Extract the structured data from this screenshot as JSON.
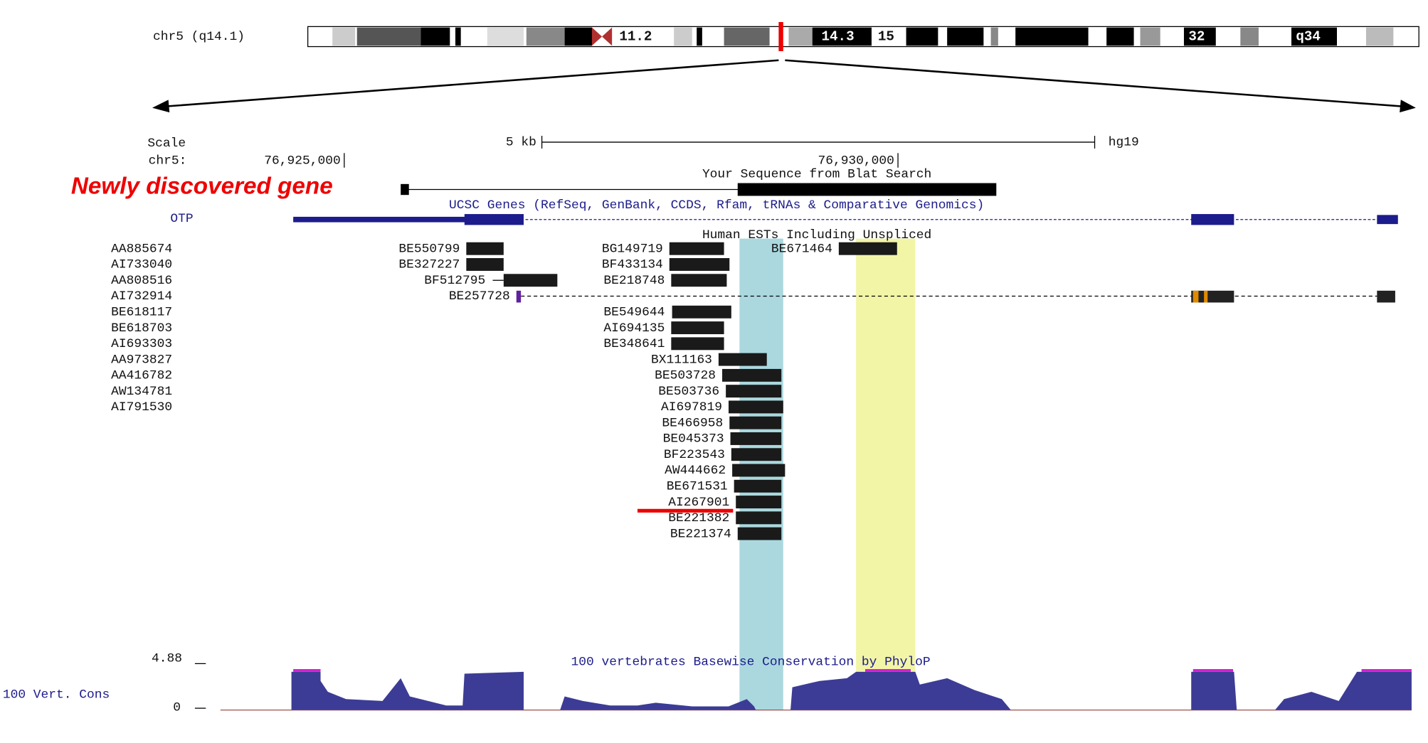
{
  "ideogram": {
    "chrom": "chr5 (q14.1)",
    "bands": [
      "11.2",
      "14.3",
      "15",
      "32",
      "q34"
    ]
  },
  "scale": {
    "label": "Scale",
    "size": "5 kb",
    "assembly": "hg19",
    "chrom": "chr5:",
    "pos_left": "76,925,000",
    "pos_right": "76,930,000"
  },
  "blat": {
    "title": "Your Sequence from Blat Search",
    "annotation": "Newly discovered gene"
  },
  "genes": {
    "title": "UCSC Genes (RefSeq, GenBank, CCDS, Rfam, tRNAs & Comparative Genomics)",
    "gene": "OTP"
  },
  "ests": {
    "title": "Human ESTs Including Unspliced",
    "left_list": [
      "AA885674",
      "AI733040",
      "AA808516",
      "AI732914",
      "BE618117",
      "BE618703",
      "AI693303",
      "AA973827",
      "AA416782",
      "AW134781",
      "AI791530"
    ],
    "items": [
      "BE550799",
      "BE327227",
      "BF512795",
      "BE257728",
      "BG149719",
      "BF433134",
      "BE218748",
      "BE671464",
      "BE549644",
      "AI694135",
      "BE348641",
      "BX111163",
      "BE503728",
      "BE503736",
      "AI697819",
      "BE466958",
      "BE045373",
      "BF223543",
      "AW444662",
      "BE671531",
      "AI267901",
      "BE221382",
      "BE221374"
    ]
  },
  "conservation": {
    "title": "100 vertebrates Basewise Conservation by PhyloP",
    "track": "100 Vert. Cons",
    "max_label": "4.88",
    "min_label": "0"
  }
}
